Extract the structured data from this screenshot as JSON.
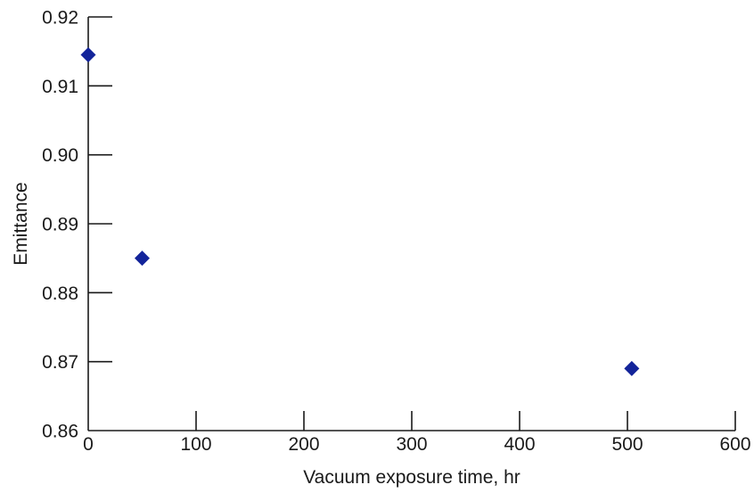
{
  "chart_data": {
    "type": "scatter",
    "title": "",
    "xlabel": "Vacuum exposure time, hr",
    "ylabel": "Emittance",
    "xlim": [
      0,
      600
    ],
    "ylim": [
      0.86,
      0.92
    ],
    "x_ticks": [
      0,
      100,
      200,
      300,
      400,
      500,
      600
    ],
    "x_tick_labels": [
      "0",
      "100",
      "200",
      "300",
      "400",
      "500",
      "600"
    ],
    "y_ticks": [
      0.86,
      0.87,
      0.88,
      0.89,
      0.9,
      0.91,
      0.92
    ],
    "y_tick_labels": [
      "0.86",
      "0.87",
      "0.88",
      "0.89",
      "0.90",
      "0.91",
      "0.92"
    ],
    "grid": false,
    "legend": "none",
    "marker": "diamond",
    "marker_color": "#13249a",
    "series": [
      {
        "x": [
          0,
          50,
          504
        ],
        "y": [
          0.9145,
          0.885,
          0.869
        ]
      }
    ]
  }
}
